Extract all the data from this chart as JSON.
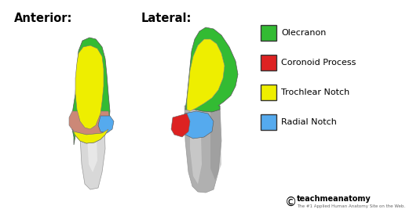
{
  "bg_color": "#ffffff",
  "title_anterior": "Anterior:",
  "title_lateral": "Lateral:",
  "legend_items": [
    {
      "label": "Olecranon",
      "color": "#33bb33"
    },
    {
      "label": "Coronoid Process",
      "color": "#dd2222"
    },
    {
      "label": "Trochlear Notch",
      "color": "#eeee00"
    },
    {
      "label": "Radial Notch",
      "color": "#55aaee"
    }
  ],
  "watermark_text": "teachmeanatomy",
  "watermark_subtext": "The #1 Applied Human Anatomy Site on the Web.",
  "olecranon_color": "#33bb33",
  "coronoid_color": "#cc8877",
  "coronoid_color2": "#dd2222",
  "trochlear_color": "#eeee00",
  "radial_color": "#55aaee",
  "bone_light": "#d8d8d8",
  "bone_mid": "#b0b0b0",
  "bone_dark": "#888888",
  "bone_white": "#eeeeee"
}
